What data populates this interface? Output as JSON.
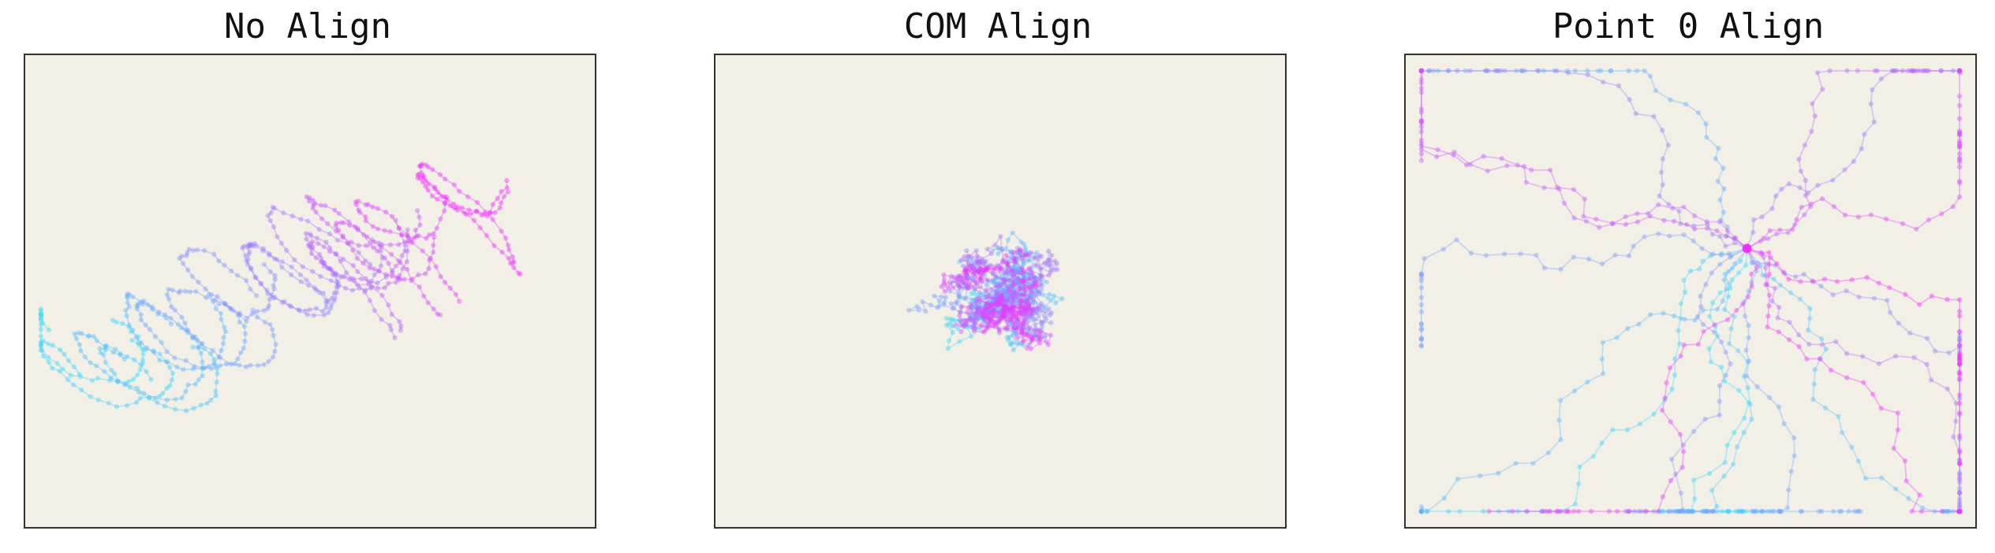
{
  "figure": {
    "background": "#ffffff",
    "plot_background": "#f2f0e6",
    "frame_color": "#333333"
  },
  "chart_data": [
    {
      "type": "line",
      "title": "No Align",
      "xlabel": "",
      "ylabel": "",
      "grid": false,
      "axes_ticks": false,
      "colormap": {
        "name": "cool",
        "start": "#37dbff",
        "end": "#f72dff"
      },
      "marker": "circle",
      "alpha": 0.32,
      "trajectories": 18,
      "points_per_trajectory": 40,
      "layout_seed": 11,
      "style_hint": "clustered-path"
    },
    {
      "type": "line",
      "title": "COM Align",
      "xlabel": "",
      "ylabel": "",
      "grid": false,
      "axes_ticks": false,
      "colormap": {
        "name": "cool",
        "start": "#37dbff",
        "end": "#f72dff"
      },
      "marker": "circle",
      "alpha": 0.3,
      "trajectories": 24,
      "points_per_trajectory": 42,
      "layout_seed": 29,
      "style_hint": "centered-cloud"
    },
    {
      "type": "line",
      "title": "Point 0 Align",
      "xlabel": "",
      "ylabel": "",
      "grid": false,
      "axes_ticks": false,
      "colormap": {
        "name": "cool",
        "start": "#37dbff",
        "end": "#f72dff"
      },
      "marker": "circle",
      "alpha": 0.32,
      "trajectories": 20,
      "points_per_trajectory": 44,
      "layout_seed": 47,
      "style_hint": "anchored-fan"
    }
  ]
}
